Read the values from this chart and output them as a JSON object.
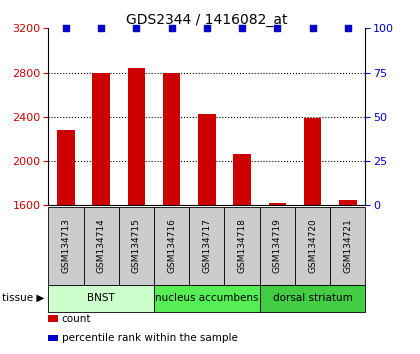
{
  "title": "GDS2344 / 1416082_at",
  "samples": [
    "GSM134713",
    "GSM134714",
    "GSM134715",
    "GSM134716",
    "GSM134717",
    "GSM134718",
    "GSM134719",
    "GSM134720",
    "GSM134721"
  ],
  "counts": [
    2280,
    2800,
    2840,
    2800,
    2430,
    2060,
    1620,
    2390,
    1650
  ],
  "percentile_ranks": [
    100,
    100,
    100,
    100,
    100,
    100,
    100,
    100,
    100
  ],
  "ylim_left": [
    1600,
    3200
  ],
  "ylim_right": [
    0,
    100
  ],
  "yticks_left": [
    1600,
    2000,
    2400,
    2800,
    3200
  ],
  "yticks_right": [
    0,
    25,
    50,
    75,
    100
  ],
  "bar_color": "#cc0000",
  "dot_color": "#0000cc",
  "tissue_groups": [
    {
      "label": "BNST",
      "start": 0,
      "end": 3,
      "color": "#ccffcc"
    },
    {
      "label": "nucleus accumbens",
      "start": 3,
      "end": 6,
      "color": "#55dd55"
    },
    {
      "label": "dorsal striatum",
      "start": 6,
      "end": 9,
      "color": "#44cc44"
    }
  ],
  "legend_count_label": "count",
  "legend_percentile_label": "percentile rank within the sample",
  "title_fontsize": 10,
  "left_tick_color": "#cc0000",
  "right_tick_color": "#0000cc",
  "bg_color": "#ffffff",
  "sample_box_color": "#cccccc",
  "bar_width": 0.5,
  "grid_yticks": [
    2000,
    2400,
    2800
  ]
}
